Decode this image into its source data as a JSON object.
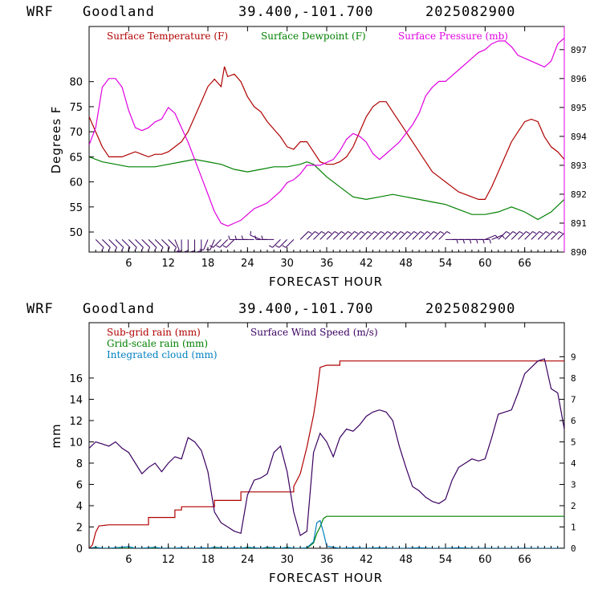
{
  "header": {
    "model": "WRF",
    "station": "Goodland",
    "coords": "39.400,-101.700",
    "date": "2025082900"
  },
  "chart_data": [
    {
      "type": "line",
      "xlabel": "FORECAST HOUR",
      "ylabel": "Degrees F",
      "xlim": [
        0,
        72
      ],
      "ylim": [
        46,
        91
      ],
      "y2lim": [
        890,
        897.8
      ],
      "xticks": [
        6,
        12,
        18,
        24,
        30,
        36,
        42,
        48,
        54,
        60,
        66
      ],
      "yticks": [
        50,
        55,
        60,
        65,
        70,
        75,
        80
      ],
      "y2ticks": [
        890,
        891,
        892,
        893,
        894,
        895,
        896,
        897
      ],
      "colors": {
        "temperature": "#b00000",
        "dewpoint": "#008000",
        "pressure": "#e000e0",
        "wind": "#3a0060"
      },
      "series": [
        {
          "name": "Surface Temperature (F)",
          "axis": "left",
          "x": [
            0,
            1,
            2,
            3,
            4,
            5,
            6,
            7,
            8,
            9,
            10,
            11,
            12,
            13,
            14,
            15,
            16,
            17,
            18,
            19,
            20,
            20.5,
            21,
            22,
            23,
            24,
            25,
            26,
            27,
            28,
            29,
            30,
            31,
            32,
            33,
            34,
            35,
            36,
            37,
            38,
            39,
            40,
            41,
            42,
            43,
            44,
            45,
            46,
            47,
            48,
            49,
            50,
            51,
            52,
            53,
            54,
            55,
            56,
            57,
            58,
            59,
            60,
            61,
            62,
            63,
            64,
            65,
            66,
            67,
            68,
            69,
            70,
            71,
            72
          ],
          "values": [
            73,
            70,
            67,
            65,
            65,
            65,
            65.5,
            66,
            65.5,
            65,
            65.5,
            65.5,
            66,
            67,
            68,
            70,
            73,
            76,
            79,
            80.5,
            79,
            83,
            81,
            81.5,
            80,
            77,
            75,
            74,
            72,
            70.5,
            69,
            67,
            66.5,
            68,
            68,
            66,
            64,
            63.5,
            63.5,
            64,
            65,
            67,
            70,
            73,
            75,
            76,
            76,
            74,
            72,
            70,
            68,
            66,
            64,
            62,
            61,
            60,
            59,
            58,
            57.5,
            57,
            56.5,
            56.5,
            59,
            62,
            65,
            68,
            70,
            72,
            72.5,
            72,
            69,
            67,
            66,
            64.5
          ]
        },
        {
          "name": "Surface Dewpoint (F)",
          "axis": "left",
          "x": [
            0,
            2,
            4,
            6,
            8,
            10,
            12,
            14,
            16,
            18,
            20,
            22,
            24,
            26,
            28,
            30,
            32,
            33,
            34,
            36,
            38,
            40,
            42,
            44,
            46,
            48,
            50,
            52,
            54,
            56,
            58,
            60,
            62,
            64,
            66,
            68,
            70,
            72
          ],
          "values": [
            65,
            64,
            63.5,
            63,
            63,
            63,
            63.5,
            64,
            64.5,
            64,
            63.5,
            62.5,
            62,
            62.5,
            63,
            63,
            63.5,
            64,
            63.5,
            61,
            59,
            57,
            56.5,
            57,
            57.5,
            57,
            56.5,
            56,
            55.5,
            54.5,
            53.5,
            53.5,
            54,
            55,
            54,
            52.5,
            54,
            56.5
          ]
        },
        {
          "name": "Surface Pressure (mb)",
          "axis": "right",
          "x": [
            0,
            1,
            2,
            3,
            4,
            5,
            6,
            7,
            8,
            9,
            10,
            11,
            12,
            13,
            14,
            15,
            16,
            17,
            18,
            19,
            20,
            21,
            22,
            23,
            24,
            25,
            26,
            27,
            28,
            29,
            30,
            31,
            32,
            33,
            34,
            35,
            36,
            37,
            38,
            39,
            40,
            41,
            42,
            43,
            44,
            45,
            46,
            47,
            48,
            49,
            50,
            51,
            52,
            53,
            54,
            55,
            56,
            57,
            58,
            59,
            60,
            61,
            62,
            63,
            64,
            65,
            66,
            67,
            68,
            69,
            70,
            71,
            72
          ],
          "values": [
            893.7,
            894.3,
            895.7,
            896,
            896,
            895.7,
            894.9,
            894.3,
            894.2,
            894.3,
            894.5,
            894.6,
            895,
            894.8,
            894.3,
            893.8,
            893.2,
            892.6,
            892,
            891.4,
            891,
            890.9,
            891,
            891.1,
            891.3,
            891.5,
            891.6,
            891.7,
            891.9,
            892.1,
            892.4,
            892.5,
            892.7,
            893,
            893,
            893,
            893.1,
            893.2,
            893.5,
            893.9,
            894.1,
            894,
            893.8,
            893.4,
            893.2,
            893.4,
            893.6,
            893.8,
            894.1,
            894.4,
            894.8,
            895.4,
            895.7,
            895.9,
            895.9,
            896.1,
            896.3,
            896.5,
            896.7,
            896.9,
            897,
            897.2,
            897.3,
            897.3,
            897.1,
            896.8,
            896.7,
            896.6,
            896.5,
            896.4,
            896.6,
            897.2,
            897.4
          ]
        }
      ],
      "wind_barbs_y": 48.5,
      "wind_barbs": [
        {
          "x": 1,
          "dir": "SE"
        },
        {
          "x": 2,
          "dir": "SE"
        },
        {
          "x": 3,
          "dir": "SE"
        },
        {
          "x": 4,
          "dir": "SE"
        },
        {
          "x": 5,
          "dir": "SE"
        },
        {
          "x": 6,
          "dir": "SE"
        },
        {
          "x": 7,
          "dir": "SE"
        },
        {
          "x": 8,
          "dir": "SE"
        },
        {
          "x": 9,
          "dir": "SE"
        },
        {
          "x": 10,
          "dir": "SE"
        },
        {
          "x": 11,
          "dir": "SE"
        },
        {
          "x": 12,
          "dir": "SE"
        },
        {
          "x": 13,
          "dir": "SSE"
        },
        {
          "x": 14,
          "dir": "S"
        },
        {
          "x": 15,
          "dir": "S"
        },
        {
          "x": 16,
          "dir": "S"
        },
        {
          "x": 17,
          "dir": "S"
        },
        {
          "x": 18,
          "dir": "SSW"
        },
        {
          "x": 19,
          "dir": "SSW"
        },
        {
          "x": 20,
          "dir": "SW"
        },
        {
          "x": 21,
          "dir": "SW"
        },
        {
          "x": 22,
          "dir": "SW"
        },
        {
          "x": 23,
          "dir": "W"
        },
        {
          "x": 24,
          "dir": "W"
        },
        {
          "x": 25,
          "dir": "W"
        },
        {
          "x": 26,
          "dir": "WNW"
        },
        {
          "x": 27,
          "dir": "W"
        },
        {
          "x": 28,
          "dir": "W"
        },
        {
          "x": 29,
          "dir": "SW"
        },
        {
          "x": 30,
          "dir": "SW"
        },
        {
          "x": 31,
          "dir": "SW"
        },
        {
          "x": 32,
          "dir": "NE"
        },
        {
          "x": 33,
          "dir": "NE"
        },
        {
          "x": 34,
          "dir": "NE"
        },
        {
          "x": 35,
          "dir": "NE"
        },
        {
          "x": 36,
          "dir": "NE"
        },
        {
          "x": 37,
          "dir": "NE"
        },
        {
          "x": 38,
          "dir": "NE"
        },
        {
          "x": 39,
          "dir": "NE"
        },
        {
          "x": 40,
          "dir": "NE"
        },
        {
          "x": 41,
          "dir": "NE"
        },
        {
          "x": 42,
          "dir": "NE"
        },
        {
          "x": 43,
          "dir": "NE"
        },
        {
          "x": 44,
          "dir": "NE"
        },
        {
          "x": 45,
          "dir": "NE"
        },
        {
          "x": 46,
          "dir": "NE"
        },
        {
          "x": 47,
          "dir": "NE"
        },
        {
          "x": 48,
          "dir": "NE"
        },
        {
          "x": 49,
          "dir": "NE"
        },
        {
          "x": 50,
          "dir": "NE"
        },
        {
          "x": 51,
          "dir": "NE"
        },
        {
          "x": 52,
          "dir": "NE"
        },
        {
          "x": 53,
          "dir": "NE"
        },
        {
          "x": 54,
          "dir": "E"
        },
        {
          "x": 55,
          "dir": "E"
        },
        {
          "x": 56,
          "dir": "E"
        },
        {
          "x": 57,
          "dir": "E"
        },
        {
          "x": 58,
          "dir": "E"
        },
        {
          "x": 59,
          "dir": "E"
        },
        {
          "x": 60,
          "dir": "ENE"
        },
        {
          "x": 61,
          "dir": "ENE"
        },
        {
          "x": 62,
          "dir": "NE"
        },
        {
          "x": 63,
          "dir": "NE"
        },
        {
          "x": 64,
          "dir": "NE"
        },
        {
          "x": 65,
          "dir": "NE"
        },
        {
          "x": 66,
          "dir": "NE"
        },
        {
          "x": 67,
          "dir": "NE"
        },
        {
          "x": 68,
          "dir": "NE"
        },
        {
          "x": 69,
          "dir": "NE"
        },
        {
          "x": 70,
          "dir": "NE"
        },
        {
          "x": 71,
          "dir": "NE"
        }
      ]
    },
    {
      "type": "line",
      "xlabel": "FORECAST HOUR",
      "ylabel": "mm",
      "xlim": [
        0,
        72
      ],
      "ylim": [
        0,
        21.2
      ],
      "y2lim": [
        0,
        10.6
      ],
      "xticks": [
        6,
        12,
        18,
        24,
        30,
        36,
        42,
        48,
        54,
        60,
        66
      ],
      "yticks": [
        0,
        2,
        4,
        6,
        8,
        10,
        12,
        14,
        16
      ],
      "y2ticks": [
        0,
        1,
        2,
        3,
        4,
        5,
        6,
        7,
        8,
        9
      ],
      "series": [
        {
          "name": "Sub-grid rain (mm)",
          "axis": "left",
          "x": [
            0,
            0.5,
            1,
            1.5,
            3,
            9,
            9,
            13,
            13,
            14,
            14,
            19,
            19,
            23,
            23,
            31,
            31,
            32,
            33,
            33.5,
            34,
            34.5,
            35,
            35.5,
            36,
            38,
            38,
            72
          ],
          "values": [
            0,
            0.3,
            1.5,
            2.1,
            2.2,
            2.2,
            2.9,
            2.9,
            3.6,
            3.6,
            3.9,
            3.9,
            4.5,
            4.5,
            5.3,
            5.3,
            5.8,
            7,
            9.5,
            11,
            12.5,
            14.5,
            17,
            17.1,
            17.2,
            17.2,
            17.6,
            17.6
          ]
        },
        {
          "name": "Grid-scale rain (mm)",
          "axis": "left",
          "x": [
            0,
            33,
            34,
            34.5,
            35,
            35.5,
            36,
            72
          ],
          "values": [
            0,
            0,
            0.5,
            1.4,
            2,
            2.8,
            3,
            3
          ]
        },
        {
          "name": "Integrated cloud (mm)",
          "axis": "left",
          "x": [
            0,
            1,
            2,
            3,
            4,
            5,
            6,
            7,
            8,
            9,
            10,
            11,
            12,
            13,
            14,
            15,
            16,
            17,
            18,
            19,
            20,
            21,
            22,
            23,
            24,
            25,
            26,
            27,
            28,
            29,
            30,
            31,
            32,
            33,
            34,
            34.5,
            35,
            35.5,
            36,
            37,
            38,
            40,
            42,
            44,
            46,
            48,
            50,
            52,
            54,
            56,
            58,
            60,
            62,
            64,
            66,
            68,
            70,
            72
          ],
          "values": [
            0,
            0.1,
            0,
            0,
            0.05,
            0.1,
            0.15,
            0,
            0,
            0.05,
            0.1,
            0,
            0,
            0,
            0.05,
            0,
            0,
            0.05,
            0,
            0.1,
            0.05,
            0,
            0.05,
            0,
            0.1,
            0.05,
            0,
            0.1,
            0.05,
            0,
            0.1,
            0,
            0,
            0.05,
            0.6,
            2.4,
            2.6,
            1.5,
            0.2,
            0.1,
            0,
            0.05,
            0,
            0.05,
            0,
            0,
            0.05,
            0,
            0,
            0.05,
            0,
            0,
            0,
            0,
            0,
            0,
            0,
            0
          ]
        },
        {
          "name": "Surface Wind Speed (m/s)",
          "axis": "right",
          "x": [
            0,
            1,
            2,
            3,
            4,
            5,
            6,
            7,
            8,
            9,
            10,
            11,
            12,
            13,
            14,
            15,
            16,
            17,
            18,
            19,
            20,
            21,
            22,
            23,
            24,
            25,
            26,
            27,
            28,
            29,
            30,
            31,
            32,
            33,
            34,
            35,
            36,
            37,
            38,
            39,
            40,
            41,
            42,
            43,
            44,
            45,
            46,
            47,
            48,
            49,
            50,
            51,
            52,
            53,
            54,
            55,
            56,
            57,
            58,
            59,
            60,
            61,
            62,
            63,
            64,
            65,
            66,
            67,
            68,
            69,
            70,
            71,
            72
          ],
          "values": [
            4.7,
            5,
            4.9,
            4.8,
            5,
            4.7,
            4.5,
            4,
            3.5,
            3.8,
            4,
            3.6,
            4,
            4.3,
            4.2,
            5.2,
            5,
            4.6,
            3.6,
            1.7,
            1.2,
            1,
            0.8,
            0.7,
            2.5,
            3.2,
            3.3,
            3.5,
            4.5,
            4.8,
            3.6,
            1.7,
            0.6,
            0.8,
            4.5,
            5.4,
            5,
            4.3,
            5.2,
            5.6,
            5.5,
            5.8,
            6.2,
            6.4,
            6.5,
            6.4,
            6,
            4.8,
            3.8,
            2.9,
            2.7,
            2.4,
            2.2,
            2.1,
            2.3,
            3.2,
            3.8,
            4,
            4.2,
            4.1,
            4.2,
            5.2,
            6.3,
            6.4,
            6.5,
            7.3,
            8.2,
            8.5,
            8.8,
            8.9,
            7.5,
            7.3,
            5.6
          ]
        }
      ]
    }
  ]
}
